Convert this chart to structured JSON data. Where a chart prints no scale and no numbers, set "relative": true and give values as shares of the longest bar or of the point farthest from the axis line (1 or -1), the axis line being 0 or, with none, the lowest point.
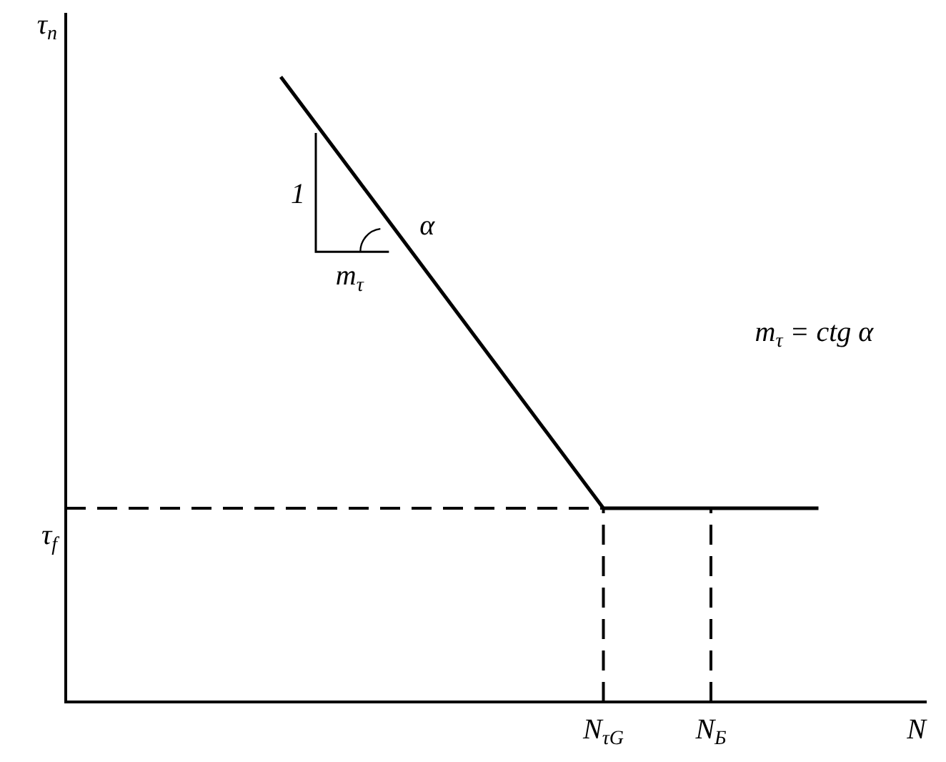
{
  "chart_data": {
    "type": "line",
    "relative": true,
    "ylabel": "τ$_{n}$",
    "categories": [
      null,
      null,
      null,
      null,
      null,
      "N$_{τG}$",
      "N$_{Б}$",
      null,
      "N"
    ],
    "series": [
      {
        "color": "#000000",
        "values": [
          null,
          null,
          1,
          0.77,
          0.54,
          0.31,
          0.31,
          0.31,
          null
        ]
      }
    ],
    "ref_lines": [
      {
        "axis": "y",
        "value": 0.31,
        "label": "τ$_{f}$",
        "line_style": "dashed"
      },
      {
        "axis": "x",
        "value": "N$_{τG}$",
        "line_style": "dashed"
      },
      {
        "axis": "x",
        "value": "N$_{Б}$",
        "line_style": "dashed"
      }
    ],
    "annotations": [
      "1",
      "α",
      "m$_{τ}$",
      "m$_{τ}$ = ctg α"
    ],
    "grid": false,
    "legend": false,
    "marker": "none",
    "line_style": "solid"
  }
}
